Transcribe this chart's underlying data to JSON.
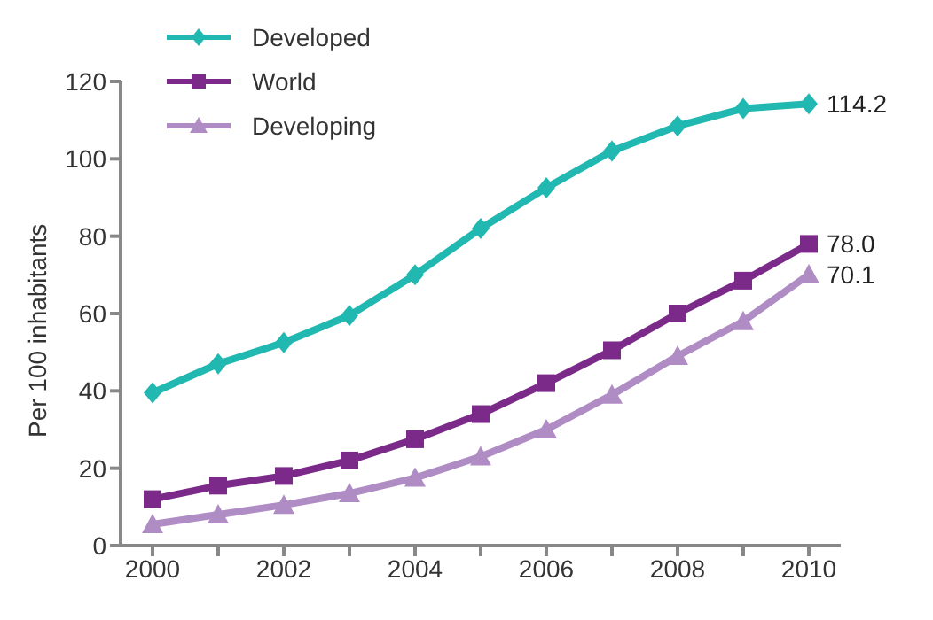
{
  "chart_data": {
    "type": "line",
    "ylabel": "Per 100 inhabitants",
    "categories": [
      "2000",
      null,
      "2002",
      null,
      "2004",
      null,
      "2006",
      null,
      "2008",
      null,
      "2010"
    ],
    "ylim": [
      0,
      120
    ],
    "yticks": [
      0,
      20,
      40,
      60,
      80,
      100,
      120
    ],
    "grid": false,
    "legend": "top left",
    "line_style": "solid",
    "series": [
      {
        "name": "Developed",
        "color": "#20b8b0",
        "marker": "diamond",
        "values": [
          39.5,
          47,
          52.5,
          59.5,
          70,
          82,
          92.5,
          102,
          108.5,
          113,
          114.2
        ],
        "value_labels": [
          null,
          null,
          null,
          null,
          null,
          null,
          null,
          null,
          null,
          null,
          "114.2"
        ]
      },
      {
        "name": "World",
        "color": "#7b2a8a",
        "marker": "square",
        "values": [
          12,
          15.5,
          18,
          22,
          27.5,
          34,
          42,
          50.5,
          60,
          68.5,
          78.0
        ],
        "value_labels": [
          null,
          null,
          null,
          null,
          null,
          null,
          null,
          null,
          null,
          null,
          "78.0"
        ]
      },
      {
        "name": "Developing",
        "color": "#b08cc4",
        "marker": "triangle",
        "values": [
          5.5,
          8,
          10.5,
          13.5,
          17.5,
          23,
          30,
          39,
          49,
          58,
          70.1
        ],
        "value_labels": [
          null,
          null,
          null,
          null,
          null,
          null,
          null,
          null,
          null,
          null,
          "70.1"
        ]
      }
    ]
  }
}
